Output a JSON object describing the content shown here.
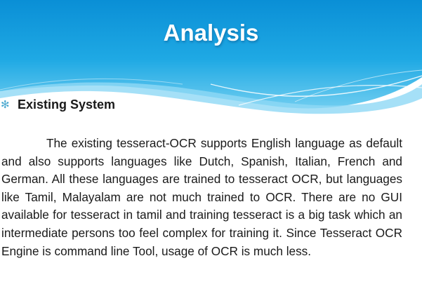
{
  "slide": {
    "title": "Analysis",
    "bullet": {
      "icon": "asterisk-bullet-icon",
      "heading": "Existing System"
    },
    "paragraph": "The existing tesseract-OCR supports English language as default and also supports languages like Dutch, Spanish, Italian, French and German. All these languages are trained to tesseract OCR, but languages like Tamil, Malayalam are not much trained to OCR.  There are no GUI available for tesseract in tamil and training tesseract is a big task which an intermediate persons too feel complex for training it. Since Tesseract OCR Engine is command line Tool, usage of OCR is much less."
  },
  "colors": {
    "header_dark": "#0b93d9",
    "header_light": "#7fd1f2",
    "bullet": "#4aa8cf",
    "text": "#1a1a1a",
    "title": "#ffffff"
  }
}
